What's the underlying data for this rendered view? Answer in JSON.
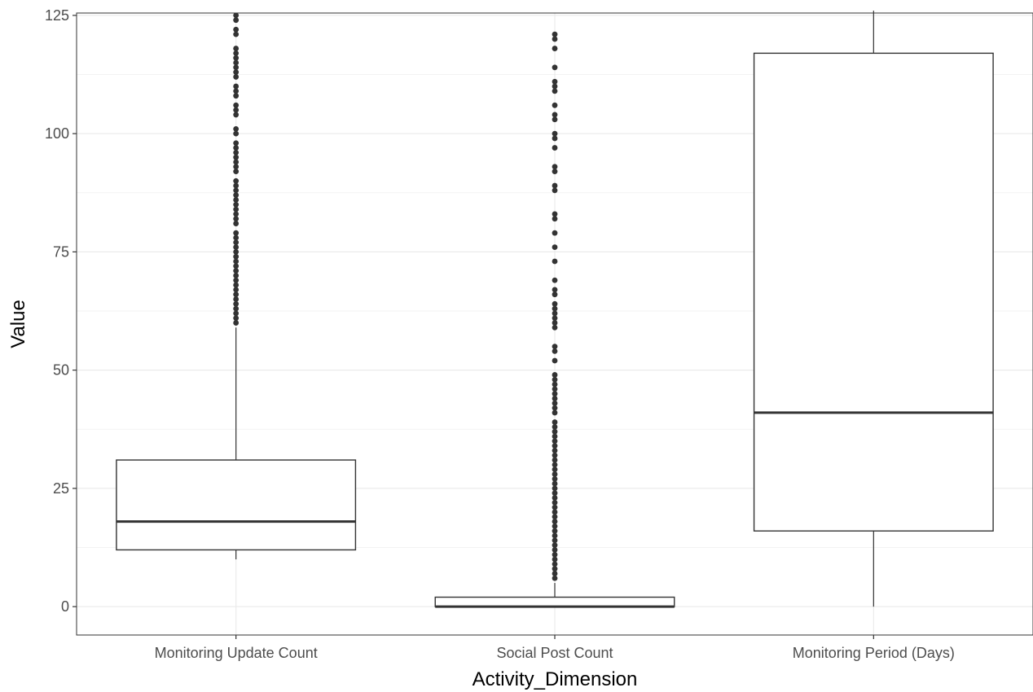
{
  "chart_data": {
    "type": "boxplot",
    "title": "",
    "xlabel": "Activity_Dimension",
    "ylabel": "Value",
    "ylim": [
      -6,
      125.5
    ],
    "y_ticks": [
      0,
      25,
      50,
      75,
      100,
      125
    ],
    "y_tick_labels": [
      "0",
      "25",
      "50",
      "75",
      "100",
      "125"
    ],
    "grid": true,
    "legend": "none",
    "categories": [
      "Monitoring Update Count",
      "Social Post Count",
      "Monitoring Period (Days)"
    ],
    "boxes": [
      {
        "category": "Monitoring Update Count",
        "whisker_low": 10,
        "q1": 12,
        "median": 18,
        "q3": 31,
        "whisker_high": 59,
        "outliers": [
          60,
          61,
          62,
          63,
          64,
          65,
          66,
          67,
          68,
          69,
          70,
          71,
          72,
          73,
          74,
          75,
          76,
          77,
          78,
          79,
          81,
          82,
          83,
          84,
          85,
          86,
          87,
          88,
          89,
          90,
          92,
          93,
          94,
          95,
          96,
          97,
          98,
          100,
          101,
          104,
          105,
          106,
          108,
          109,
          110,
          112,
          113,
          114,
          115,
          116,
          117,
          118,
          121,
          122,
          124,
          125
        ]
      },
      {
        "category": "Social Post Count",
        "whisker_low": 0,
        "q1": 0,
        "median": 0,
        "q3": 2,
        "whisker_high": 5,
        "outliers": [
          6,
          7,
          8,
          9,
          10,
          11,
          12,
          13,
          14,
          15,
          16,
          17,
          18,
          19,
          20,
          21,
          22,
          23,
          24,
          25,
          26,
          27,
          28,
          29,
          30,
          31,
          32,
          33,
          34,
          35,
          36,
          37,
          38,
          39,
          41,
          42,
          43,
          44,
          45,
          46,
          47,
          48,
          49,
          52,
          54,
          55,
          59,
          60,
          61,
          62,
          63,
          64,
          66,
          67,
          69,
          73,
          76,
          79,
          82,
          83,
          88,
          89,
          92,
          93,
          97,
          99,
          100,
          103,
          104,
          106,
          109,
          110,
          111,
          114,
          118,
          120,
          121
        ]
      },
      {
        "category": "Monitoring Period (Days)",
        "whisker_low": 0,
        "q1": 16,
        "median": 41,
        "q3": 117,
        "whisker_high": 126,
        "outliers": []
      }
    ],
    "colors": {
      "box_fill": "#ffffff",
      "box_stroke": "#333333",
      "point": "#333333",
      "grid_major": "#ebebeb",
      "grid_minor": "#f3f3f3",
      "panel_border": "#333333"
    }
  }
}
